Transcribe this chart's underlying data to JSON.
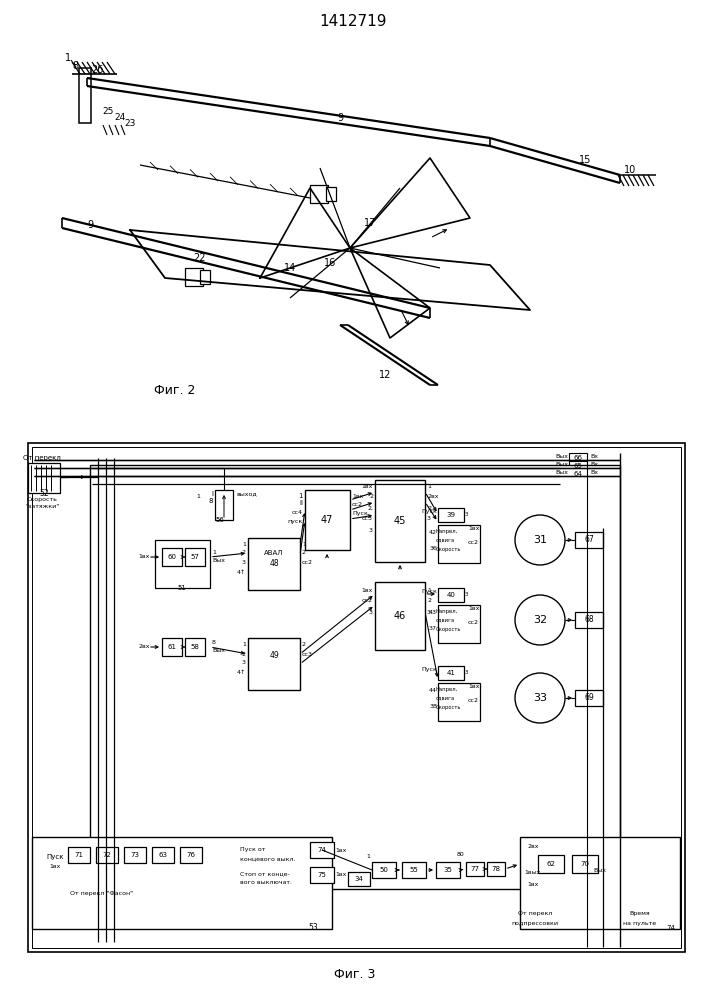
{
  "title": "1412719",
  "fig2_caption": "Фиг. 2",
  "fig3_caption": "Фиг. 3",
  "bg_color": "#ffffff"
}
